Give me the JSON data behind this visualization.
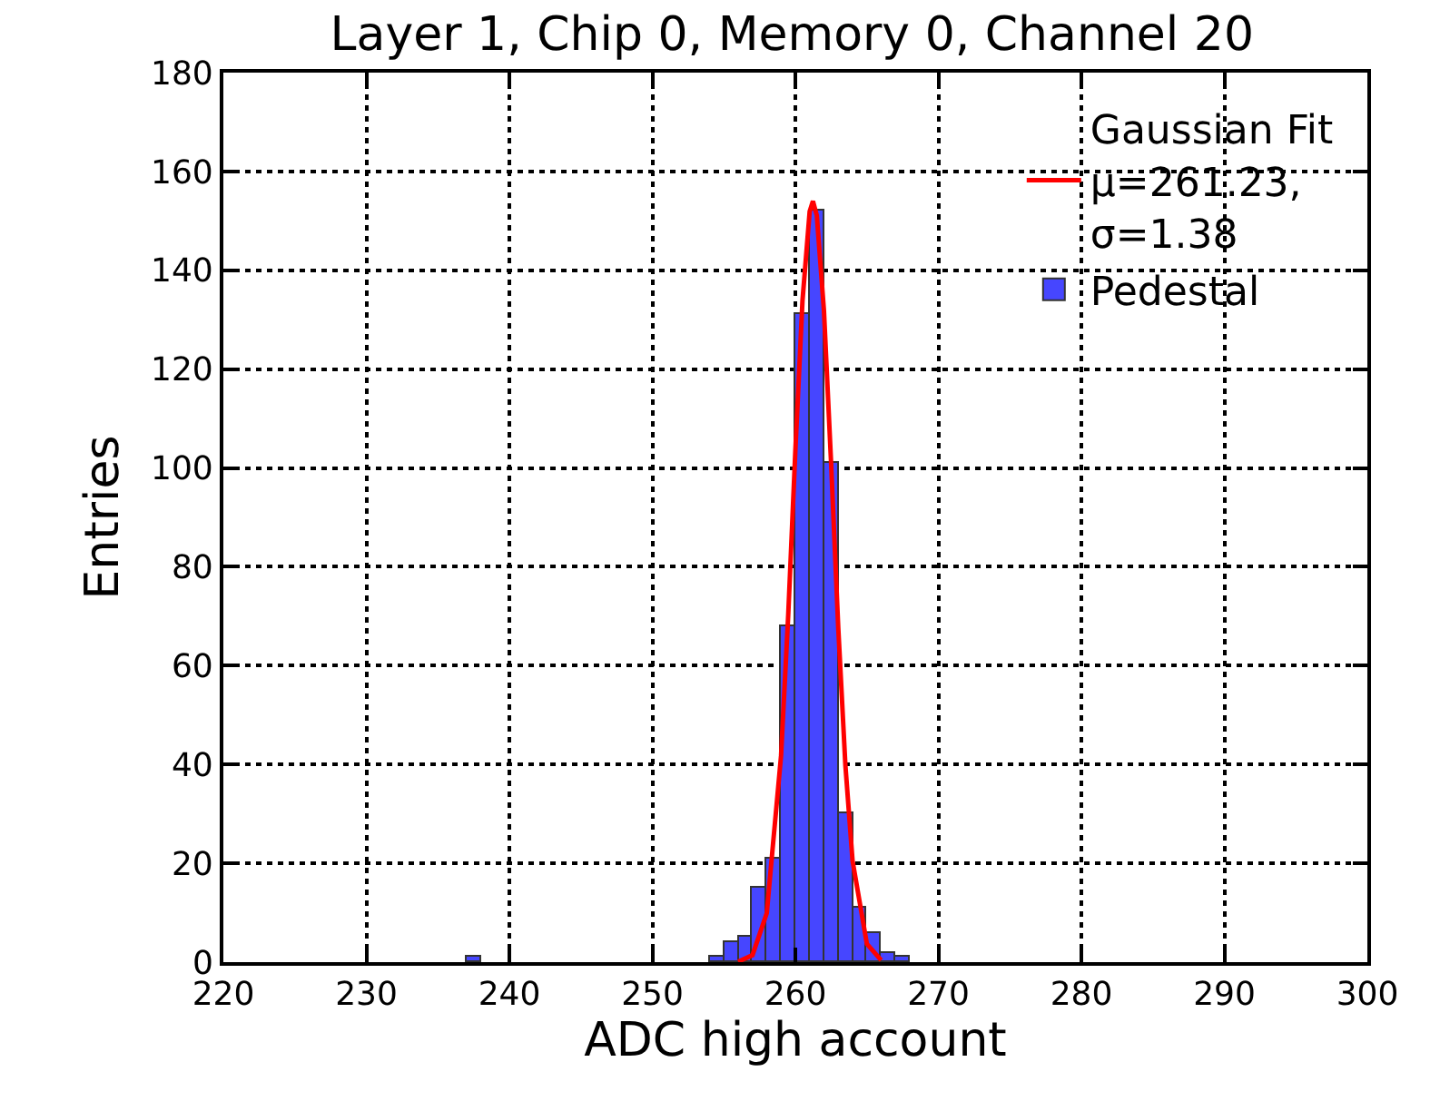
{
  "chart_data": {
    "type": "histogram",
    "title": "Layer 1, Chip 0, Memory 0, Channel 20",
    "xlabel": "ADC high account",
    "ylabel": "Entries",
    "bins": [
      237,
      238,
      239,
      240,
      241,
      242,
      243,
      244,
      245,
      246,
      247,
      248,
      249,
      250,
      251,
      252,
      253,
      254,
      255,
      256,
      257,
      258,
      259,
      260,
      261,
      262,
      263,
      264,
      265,
      266,
      267,
      268
    ],
    "series": [
      {
        "name": "Pedestal",
        "color": "#4646ff",
        "values": [
          1,
          0,
          0,
          0,
          0,
          0,
          0,
          0,
          0,
          0,
          0,
          0,
          0,
          0,
          0,
          0,
          0,
          1,
          4,
          5,
          15,
          21,
          68,
          131,
          152,
          101,
          30,
          11,
          6,
          2,
          1
        ]
      },
      {
        "name": "Gaussian Fit\nμ=261.23,\nσ=1.38",
        "type": "line",
        "color": "#ff0000",
        "x": [
          256,
          257,
          258,
          259,
          259.5,
          260,
          260.5,
          261,
          261.23,
          261.5,
          262,
          262.5,
          263,
          263.5,
          264,
          265,
          266
        ],
        "values": [
          0.1,
          1.4,
          9.9,
          41.8,
          70.2,
          103.5,
          133.9,
          151.9,
          154,
          151.1,
          131.8,
          100.9,
          67.6,
          39.8,
          20.5,
          3.7,
          0.4
        ]
      }
    ],
    "xlim": [
      220,
      300
    ],
    "xticks": [
      220,
      230,
      240,
      250,
      260,
      270,
      280,
      290,
      300
    ],
    "ylim": [
      0,
      180
    ],
    "yticks": [
      0,
      20,
      40,
      60,
      80,
      100,
      120,
      140,
      160,
      180
    ],
    "grid": true,
    "legend": "top right",
    "line_style": "solid",
    "marker": "none"
  }
}
